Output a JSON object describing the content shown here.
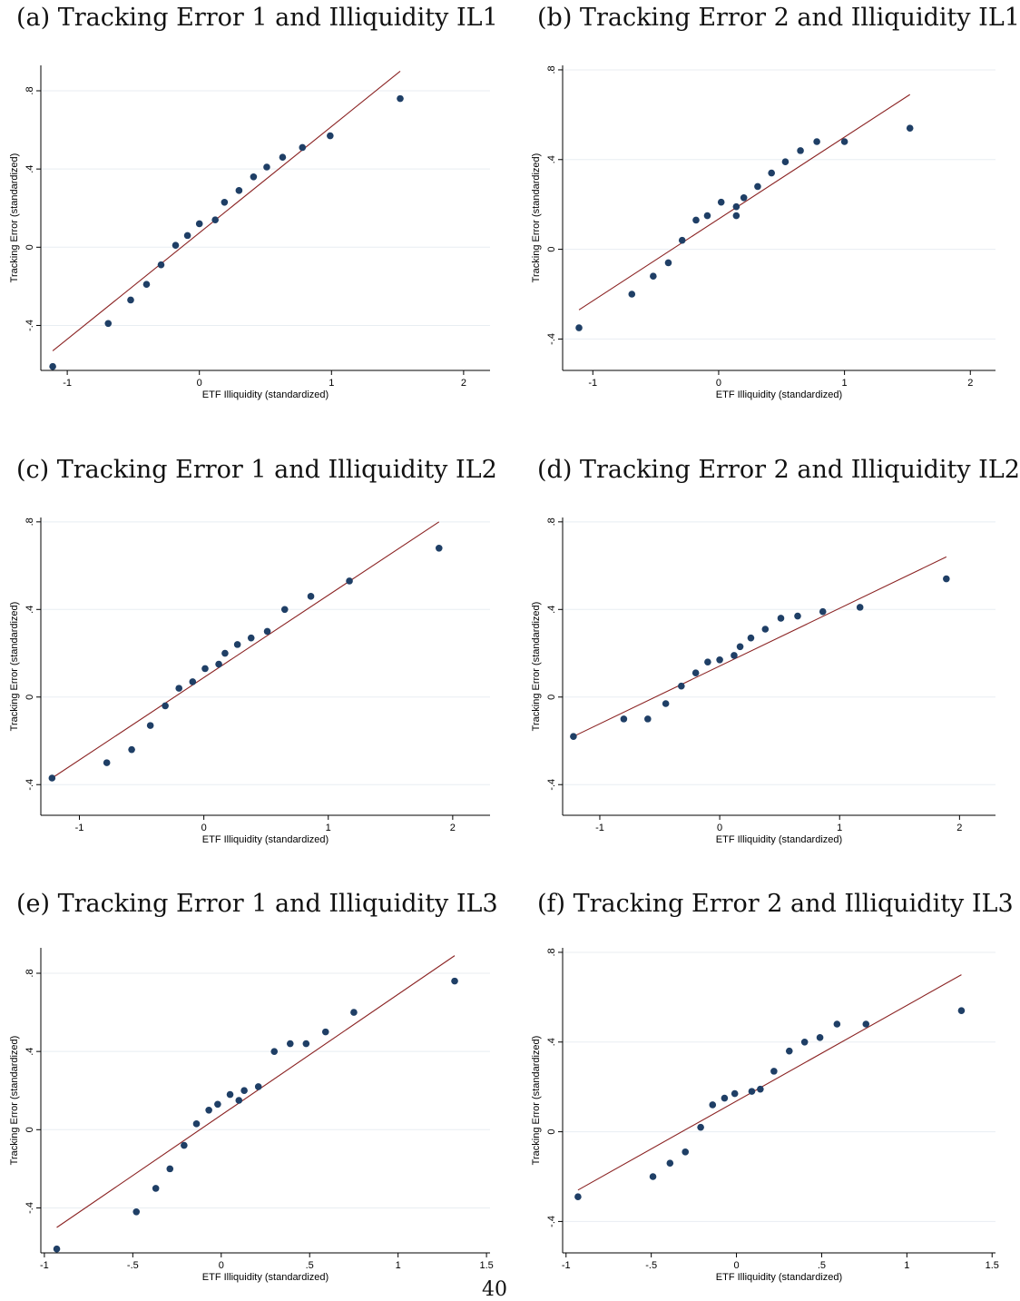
{
  "page_number": "40",
  "style": {
    "dot_color": "#1f3f66",
    "line_color": "#8b2323",
    "grid_color": "#e8edf2"
  },
  "chart_data": [
    {
      "type": "scatter",
      "caption": "(a) Tracking Error 1 and Illiquidity IL1",
      "xlabel": "ETF Illiquidity (standardized)",
      "ylabel": "Tracking Error (standardized)",
      "xlim": [
        -1.2,
        2.2
      ],
      "ylim": [
        -0.63,
        0.93
      ],
      "xticks": [
        -1,
        0,
        1,
        2
      ],
      "xtick_labels": [
        "-1",
        "0",
        "1",
        "2"
      ],
      "yticks": [
        -0.4,
        0,
        0.4,
        0.8
      ],
      "ytick_labels": [
        "-.4",
        "0",
        ".4",
        ".8"
      ],
      "grid": true,
      "points": [
        [
          -1.11,
          -0.61
        ],
        [
          -0.69,
          -0.39
        ],
        [
          -0.52,
          -0.27
        ],
        [
          -0.4,
          -0.19
        ],
        [
          -0.29,
          -0.09
        ],
        [
          -0.18,
          0.01
        ],
        [
          -0.09,
          0.06
        ],
        [
          0.0,
          0.12
        ],
        [
          0.12,
          0.14
        ],
        [
          0.19,
          0.23
        ],
        [
          0.3,
          0.29
        ],
        [
          0.41,
          0.36
        ],
        [
          0.51,
          0.41
        ],
        [
          0.63,
          0.46
        ],
        [
          0.78,
          0.51
        ],
        [
          0.99,
          0.57
        ],
        [
          1.52,
          0.76
        ]
      ],
      "fit_line": [
        [
          -1.11,
          -0.53
        ],
        [
          1.52,
          0.9
        ]
      ]
    },
    {
      "type": "scatter",
      "caption": "(b) Tracking Error 2 and Illiquidity IL1",
      "xlabel": "ETF Illiquidity (standardized)",
      "ylabel": "Tracking Error (standardized)",
      "xlim": [
        -1.24,
        2.2
      ],
      "ylim": [
        -0.54,
        0.82
      ],
      "xticks": [
        -1,
        0,
        1,
        2
      ],
      "xtick_labels": [
        "-1",
        "0",
        "1",
        "2"
      ],
      "yticks": [
        -0.4,
        0,
        0.4,
        0.8
      ],
      "ytick_labels": [
        "-.4",
        "0",
        ".4",
        ".8"
      ],
      "grid": true,
      "points": [
        [
          -1.11,
          -0.35
        ],
        [
          -0.69,
          -0.2
        ],
        [
          -0.52,
          -0.12
        ],
        [
          -0.4,
          -0.06
        ],
        [
          -0.29,
          0.04
        ],
        [
          -0.18,
          0.13
        ],
        [
          -0.09,
          0.15
        ],
        [
          0.02,
          0.21
        ],
        [
          0.14,
          0.15
        ],
        [
          0.14,
          0.19
        ],
        [
          0.2,
          0.23
        ],
        [
          0.31,
          0.28
        ],
        [
          0.42,
          0.34
        ],
        [
          0.53,
          0.39
        ],
        [
          0.65,
          0.44
        ],
        [
          0.78,
          0.48
        ],
        [
          1.0,
          0.48
        ],
        [
          1.52,
          0.54
        ]
      ],
      "fit_line": [
        [
          -1.11,
          -0.27
        ],
        [
          1.52,
          0.69
        ]
      ]
    },
    {
      "type": "scatter",
      "caption": "(c) Tracking Error 1 and Illiquidity IL2",
      "xlabel": "ETF Illiquidity (standardized)",
      "ylabel": "Tracking Error (standardized)",
      "xlim": [
        -1.31,
        2.3
      ],
      "ylim": [
        -0.54,
        0.82
      ],
      "xticks": [
        -1,
        0,
        1,
        2
      ],
      "xtick_labels": [
        "-1",
        "0",
        "1",
        "2"
      ],
      "yticks": [
        -0.4,
        0,
        0.4,
        0.8
      ],
      "ytick_labels": [
        "-.4",
        "0",
        ".4",
        ".8"
      ],
      "grid": true,
      "points": [
        [
          -1.22,
          -0.37
        ],
        [
          -0.78,
          -0.3
        ],
        [
          -0.58,
          -0.24
        ],
        [
          -0.43,
          -0.13
        ],
        [
          -0.31,
          -0.04
        ],
        [
          -0.2,
          0.04
        ],
        [
          -0.09,
          0.07
        ],
        [
          0.01,
          0.13
        ],
        [
          0.12,
          0.15
        ],
        [
          0.17,
          0.2
        ],
        [
          0.27,
          0.24
        ],
        [
          0.38,
          0.27
        ],
        [
          0.51,
          0.3
        ],
        [
          0.65,
          0.4
        ],
        [
          0.86,
          0.46
        ],
        [
          1.17,
          0.53
        ],
        [
          1.89,
          0.68
        ]
      ],
      "fit_line": [
        [
          -1.22,
          -0.37
        ],
        [
          1.89,
          0.8
        ]
      ]
    },
    {
      "type": "scatter",
      "caption": "(d) Tracking Error 2 and Illiquidity IL2",
      "xlabel": "ETF Illiquidity (standardized)",
      "ylabel": "Tracking Error (standardized)",
      "xlim": [
        -1.31,
        2.3
      ],
      "ylim": [
        -0.54,
        0.82
      ],
      "xticks": [
        -1,
        0,
        1,
        2
      ],
      "xtick_labels": [
        "-1",
        "0",
        "1",
        "2"
      ],
      "yticks": [
        -0.4,
        0,
        0.4,
        0.8
      ],
      "ytick_labels": [
        "-.4",
        "0",
        ".4",
        ".8"
      ],
      "grid": true,
      "points": [
        [
          -1.22,
          -0.18
        ],
        [
          -0.8,
          -0.1
        ],
        [
          -0.6,
          -0.1
        ],
        [
          -0.45,
          -0.03
        ],
        [
          -0.32,
          0.05
        ],
        [
          -0.2,
          0.11
        ],
        [
          -0.1,
          0.16
        ],
        [
          0.0,
          0.17
        ],
        [
          0.12,
          0.19
        ],
        [
          0.17,
          0.23
        ],
        [
          0.26,
          0.27
        ],
        [
          0.38,
          0.31
        ],
        [
          0.51,
          0.36
        ],
        [
          0.65,
          0.37
        ],
        [
          0.86,
          0.39
        ],
        [
          1.17,
          0.41
        ],
        [
          1.89,
          0.54
        ]
      ],
      "fit_line": [
        [
          -1.22,
          -0.18
        ],
        [
          1.89,
          0.64
        ]
      ]
    },
    {
      "type": "scatter",
      "caption": "(e) Tracking Error 1 and Illiquidity IL3",
      "xlabel": "ETF Illiquidity (standardized)",
      "ylabel": "Tracking Error (standardized)",
      "xlim": [
        -1.02,
        1.52
      ],
      "ylim": [
        -0.63,
        0.93
      ],
      "xticks": [
        -1,
        -0.5,
        0,
        0.5,
        1,
        1.5
      ],
      "xtick_labels": [
        "-1",
        "-.5",
        "0",
        ".5",
        "1",
        "1.5"
      ],
      "yticks": [
        -0.4,
        0,
        0.4,
        0.8
      ],
      "ytick_labels": [
        "-.4",
        "0",
        ".4",
        ".8"
      ],
      "grid": true,
      "points": [
        [
          -0.93,
          -0.61
        ],
        [
          -0.48,
          -0.42
        ],
        [
          -0.37,
          -0.3
        ],
        [
          -0.29,
          -0.2
        ],
        [
          -0.21,
          -0.08
        ],
        [
          -0.14,
          0.03
        ],
        [
          -0.07,
          0.1
        ],
        [
          -0.02,
          0.13
        ],
        [
          0.05,
          0.18
        ],
        [
          0.1,
          0.15
        ],
        [
          0.13,
          0.2
        ],
        [
          0.21,
          0.22
        ],
        [
          0.3,
          0.4
        ],
        [
          0.39,
          0.44
        ],
        [
          0.48,
          0.44
        ],
        [
          0.59,
          0.5
        ],
        [
          0.75,
          0.6
        ],
        [
          1.32,
          0.76
        ]
      ],
      "fit_line": [
        [
          -0.93,
          -0.5
        ],
        [
          1.32,
          0.89
        ]
      ]
    },
    {
      "type": "scatter",
      "caption": "(f) Tracking Error 2 and Illiquidity IL3",
      "xlabel": "ETF Illiquidity (standardized)",
      "ylabel": "Tracking Error (standardized)",
      "xlim": [
        -1.02,
        1.52
      ],
      "ylim": [
        -0.54,
        0.82
      ],
      "xticks": [
        -1,
        -0.5,
        0,
        0.5,
        1,
        1.5
      ],
      "xtick_labels": [
        "-1",
        "-.5",
        "0",
        ".5",
        "1",
        "1.5"
      ],
      "yticks": [
        -0.4,
        0,
        0.4,
        0.8
      ],
      "ytick_labels": [
        "-.4",
        "0",
        ".4",
        ".8"
      ],
      "grid": true,
      "points": [
        [
          -0.93,
          -0.29
        ],
        [
          -0.49,
          -0.2
        ],
        [
          -0.39,
          -0.14
        ],
        [
          -0.3,
          -0.09
        ],
        [
          -0.21,
          0.02
        ],
        [
          -0.14,
          0.12
        ],
        [
          -0.07,
          0.15
        ],
        [
          -0.01,
          0.17
        ],
        [
          0.09,
          0.18
        ],
        [
          0.14,
          0.19
        ],
        [
          0.22,
          0.27
        ],
        [
          0.31,
          0.36
        ],
        [
          0.4,
          0.4
        ],
        [
          0.49,
          0.42
        ],
        [
          0.59,
          0.48
        ],
        [
          0.76,
          0.48
        ],
        [
          1.32,
          0.54
        ]
      ],
      "fit_line": [
        [
          -0.93,
          -0.26
        ],
        [
          1.32,
          0.7
        ]
      ]
    }
  ]
}
